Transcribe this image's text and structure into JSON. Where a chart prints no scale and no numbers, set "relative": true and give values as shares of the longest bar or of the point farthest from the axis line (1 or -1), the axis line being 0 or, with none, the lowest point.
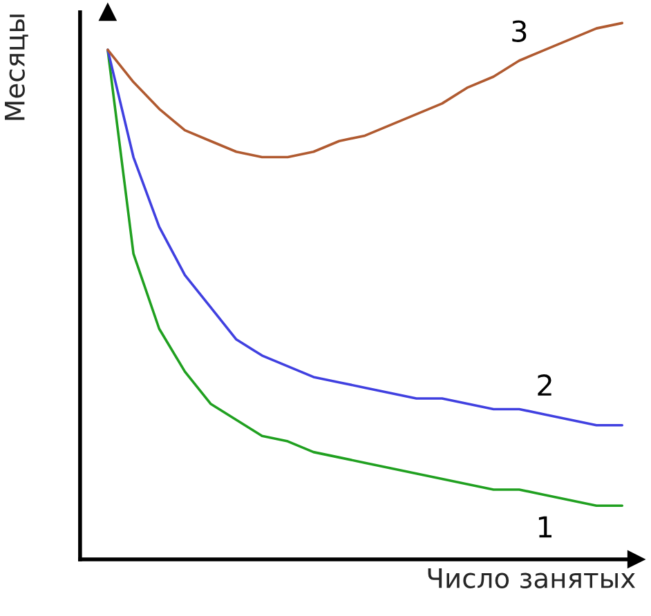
{
  "chart_data": {
    "type": "line",
    "relative": true,
    "xlabel": "Число занятых",
    "ylabel": "Месяцы",
    "legend": false,
    "marker": "none",
    "line_style": "solid",
    "categories": [
      null,
      null,
      null,
      null,
      null,
      null,
      null,
      null,
      null,
      null,
      null,
      null,
      null,
      null,
      null,
      null,
      null,
      null,
      null,
      null,
      null
    ],
    "series": [
      {
        "name": "1",
        "color": "#20a020",
        "values": [
          0.95,
          0.57,
          0.43,
          0.35,
          0.29,
          0.26,
          0.23,
          0.22,
          0.2,
          0.19,
          0.18,
          0.17,
          0.16,
          0.15,
          0.14,
          0.13,
          0.13,
          0.12,
          0.11,
          0.1,
          0.1
        ]
      },
      {
        "name": "2",
        "color": "#4040e0",
        "values": [
          0.95,
          0.75,
          0.62,
          0.53,
          0.47,
          0.41,
          0.38,
          0.36,
          0.34,
          0.33,
          0.32,
          0.31,
          0.3,
          0.3,
          0.29,
          0.28,
          0.28,
          0.27,
          0.26,
          0.25,
          0.25
        ]
      },
      {
        "name": "3",
        "color": "#b05a30",
        "values": [
          0.95,
          0.89,
          0.84,
          0.8,
          0.78,
          0.76,
          0.75,
          0.75,
          0.76,
          0.78,
          0.79,
          0.81,
          0.83,
          0.85,
          0.88,
          0.9,
          0.93,
          0.95,
          0.97,
          0.99,
          1
        ]
      }
    ]
  }
}
